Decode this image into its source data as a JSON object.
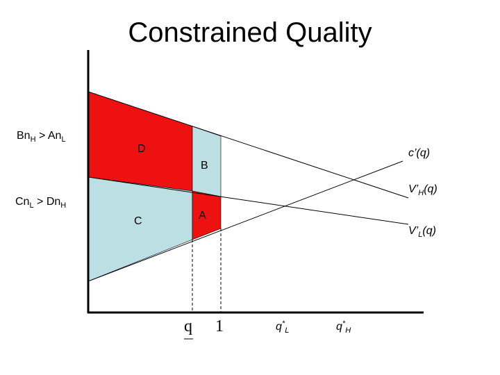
{
  "title": "Constrained Quality",
  "conditions": {
    "top": {
      "left": "Bn",
      "left_sub": "H",
      "middle": " > An",
      "right_sub": "L"
    },
    "bottom": {
      "left": "Cn",
      "left_sub": "L",
      "middle": " > Dn",
      "right_sub": "H"
    }
  },
  "regions": {
    "d": "D",
    "b": "B",
    "c": "C",
    "a": "A"
  },
  "curves": {
    "cost": "c’(q)",
    "high": {
      "main": "V’",
      "sub": "H",
      "tail": "(q)"
    },
    "low": {
      "main": "V’",
      "sub": "L",
      "tail": "(q)"
    }
  },
  "x_labels": {
    "q_min": "q",
    "one": "1",
    "q_star_low": {
      "main": "q",
      "sup": "*",
      "sub": "L"
    },
    "q_star_high": {
      "main": "q",
      "sup": "*",
      "sub": "H"
    }
  }
}
